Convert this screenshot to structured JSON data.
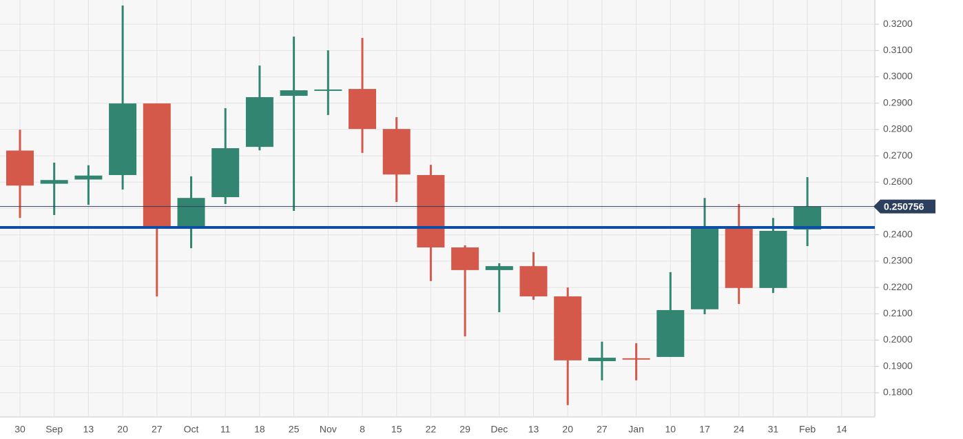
{
  "chart_data": {
    "type": "candlestick",
    "categories": [
      "30",
      "Sep",
      "13",
      "20",
      "27",
      "Oct",
      "11",
      "18",
      "25",
      "Nov",
      "8",
      "15",
      "22",
      "29",
      "Dec",
      "13",
      "20",
      "27",
      "Jan",
      "10",
      "17",
      "24",
      "31",
      "Feb",
      "14"
    ],
    "open": [
      0.272,
      0.2594,
      0.261,
      0.2627,
      0.2899,
      0.2428,
      0.2543,
      0.2734,
      0.2928,
      0.295,
      0.2954,
      0.2802,
      0.2627,
      0.2352,
      0.2266,
      0.2281,
      0.2166,
      0.192,
      0.1931,
      0.1936,
      0.2117,
      0.2428,
      0.2198,
      0.242,
      null
    ],
    "high": [
      0.2799,
      0.2674,
      0.2664,
      0.3271,
      0.2899,
      0.2622,
      0.2881,
      0.3043,
      0.3153,
      0.3101,
      0.3148,
      0.2847,
      0.2666,
      0.236,
      0.2292,
      0.2334,
      0.22,
      0.1994,
      0.1988,
      0.2258,
      0.254,
      0.2517,
      0.2464,
      0.2619,
      null
    ],
    "low": [
      0.2464,
      0.2475,
      0.2514,
      0.2572,
      0.2166,
      0.2349,
      0.2517,
      0.2721,
      0.2491,
      0.2855,
      0.2711,
      0.2525,
      0.2224,
      0.2014,
      0.2106,
      0.2153,
      0.1753,
      0.1847,
      0.1847,
      0.1936,
      0.2098,
      0.2137,
      0.2179,
      0.2357,
      null
    ],
    "close": [
      0.2587,
      0.2608,
      0.2625,
      0.2899,
      0.2428,
      0.254,
      0.2729,
      0.2923,
      0.2949,
      0.2952,
      0.2802,
      0.2629,
      0.2352,
      0.2266,
      0.2281,
      0.2166,
      0.1923,
      0.1933,
      0.193,
      0.2114,
      0.2428,
      0.2198,
      0.2415,
      0.250756,
      null
    ],
    "up_color": "#328571",
    "down_color": "#d4594a",
    "ylim": [
      0.1708,
      0.3292
    ],
    "yticks": [
      {
        "value": 0.18,
        "label": "0.1800"
      },
      {
        "value": 0.19,
        "label": "0.1900"
      },
      {
        "value": 0.2,
        "label": "0.2000"
      },
      {
        "value": 0.21,
        "label": "0.2100"
      },
      {
        "value": 0.22,
        "label": "0.2200"
      },
      {
        "value": 0.23,
        "label": "0.2300"
      },
      {
        "value": 0.24,
        "label": "0.2400"
      },
      {
        "value": 0.25,
        "label": "0.2500"
      },
      {
        "value": 0.26,
        "label": "0.2600"
      },
      {
        "value": 0.27,
        "label": "0.2700"
      },
      {
        "value": 0.28,
        "label": "0.2800"
      },
      {
        "value": 0.29,
        "label": "0.2900"
      },
      {
        "value": 0.3,
        "label": "0.3000"
      },
      {
        "value": 0.31,
        "label": "0.3100"
      },
      {
        "value": 0.32,
        "label": "0.3200"
      }
    ],
    "grid": true,
    "reference_line": {
      "value": 0.2428,
      "color": "#0d4ea6"
    },
    "last_price": 0.250756,
    "last_price_color": "#2d3f5e"
  }
}
